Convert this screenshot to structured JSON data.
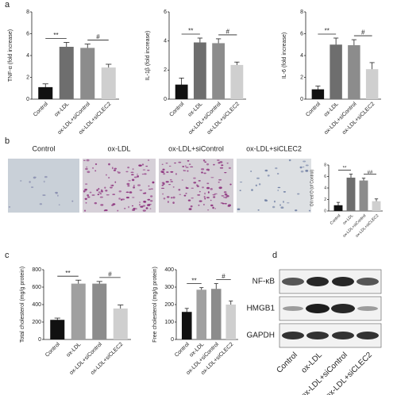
{
  "panel_labels": [
    "a",
    "b",
    "c",
    "d"
  ],
  "micrograph_labels": [
    "Control",
    "ox-LDL",
    "ox-LDL+siControl",
    "ox-LDL+siCLEC2"
  ],
  "western_blot": {
    "rows": [
      "NF-κB",
      "HMGB1",
      "GAPDH"
    ],
    "lanes": [
      "Control",
      "ox-LDL",
      "ox-LDL+siControl",
      "ox-LDL+siCLEC2"
    ]
  },
  "chart_data": [
    {
      "type": "bar",
      "ylabel": "TNF-α (fold increase)",
      "categories": [
        "Control",
        "ox-LDL",
        "ox-LDL+siControl",
        "ox-LDL+siCLEC2"
      ],
      "values": [
        1.1,
        4.8,
        4.7,
        2.9
      ],
      "errors": [
        0.3,
        0.4,
        0.35,
        0.3
      ],
      "colors": [
        "#111111",
        "#6e6e6e",
        "#8c8c8c",
        "#cfcfcf"
      ],
      "ylim": [
        0,
        8
      ],
      "yticks": [
        0,
        2,
        4,
        6,
        8
      ],
      "annotations": [
        "**",
        "#"
      ]
    },
    {
      "type": "bar",
      "ylabel": "IL-1β (fold increase)",
      "categories": [
        "Control",
        "ox-LDL",
        "ox-LDL+siControl",
        "ox-LDL+siCLEC2"
      ],
      "values": [
        1.0,
        3.9,
        3.85,
        2.35
      ],
      "errors": [
        0.45,
        0.3,
        0.3,
        0.2
      ],
      "colors": [
        "#111111",
        "#6e6e6e",
        "#8c8c8c",
        "#cfcfcf"
      ],
      "ylim": [
        0,
        6
      ],
      "yticks": [
        0,
        2,
        4,
        6
      ],
      "annotations": [
        "**",
        "#"
      ]
    },
    {
      "type": "bar",
      "ylabel": "IL-6 (fold increase)",
      "categories": [
        "Control",
        "ox-LDL",
        "ox-LDL+siControl",
        "ox-LDL+siCLEC2"
      ],
      "values": [
        0.9,
        5.0,
        4.95,
        2.75
      ],
      "errors": [
        0.3,
        0.6,
        0.5,
        0.6
      ],
      "colors": [
        "#111111",
        "#6e6e6e",
        "#8c8c8c",
        "#cfcfcf"
      ],
      "ylim": [
        0,
        8
      ],
      "yticks": [
        0,
        2,
        4,
        6,
        8
      ],
      "annotations": [
        "**",
        "#"
      ]
    },
    {
      "type": "bar",
      "ylabel": "Oil red O (of Control)",
      "categories": [
        "Control",
        "ox-LDL",
        "ox-LDL+siControl",
        "ox-LDL+siCLEC2"
      ],
      "values": [
        1.0,
        5.8,
        5.3,
        1.7
      ],
      "errors": [
        0.5,
        0.6,
        0.4,
        0.4
      ],
      "colors": [
        "#111111",
        "#6e6e6e",
        "#8c8c8c",
        "#cfcfcf"
      ],
      "ylim": [
        0,
        8
      ],
      "yticks": [
        0,
        2,
        4,
        6,
        8
      ],
      "annotations": [
        "**",
        "##"
      ]
    },
    {
      "type": "bar",
      "ylabel": "Total cholesterol (mg/g protein)",
      "categories": [
        "Control",
        "ox-LDL",
        "ox-LDL+siControl",
        "ox-LDL+siCLEC2"
      ],
      "values": [
        225,
        640,
        640,
        355
      ],
      "errors": [
        20,
        40,
        25,
        40
      ],
      "colors": [
        "#111111",
        "#a0a0a0",
        "#8c8c8c",
        "#cfcfcf"
      ],
      "ylim": [
        0,
        800
      ],
      "yticks": [
        0,
        200,
        400,
        600,
        800
      ],
      "annotations": [
        "**",
        "#"
      ]
    },
    {
      "type": "bar",
      "ylabel": "Free cholesterol (mg/g protein)",
      "categories": [
        "Control",
        "ox-LDL",
        "ox-LDL+siControl",
        "ox-LDL+siCLEC2"
      ],
      "values": [
        158,
        285,
        290,
        200
      ],
      "errors": [
        20,
        12,
        30,
        20
      ],
      "colors": [
        "#111111",
        "#a0a0a0",
        "#8c8c8c",
        "#cfcfcf"
      ],
      "ylim": [
        0,
        400
      ],
      "yticks": [
        0,
        100,
        200,
        300,
        400
      ],
      "annotations": [
        "**",
        "#"
      ]
    }
  ]
}
